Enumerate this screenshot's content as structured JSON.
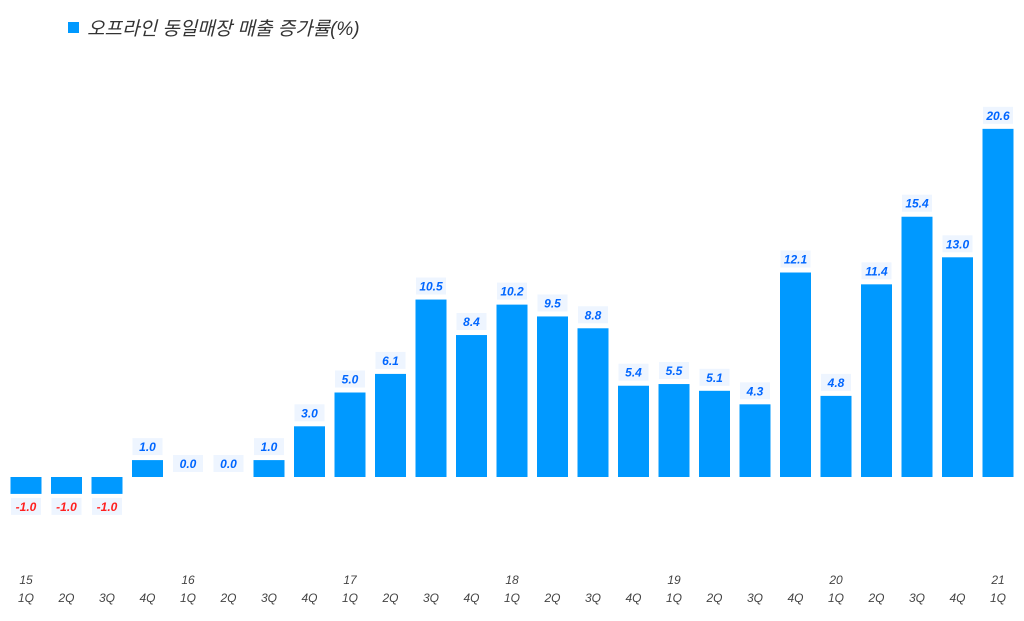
{
  "chart_data": {
    "type": "bar",
    "title": "",
    "legend": {
      "position": "top-left",
      "entries": [
        "오프라인 동일매장 매출 증가률(%)"
      ]
    },
    "series": [
      {
        "name": "오프라인 동일매장 매출 증가률(%)",
        "color": "#0099ff",
        "values": [
          -1.0,
          -1.0,
          -1.0,
          1.0,
          0.0,
          0.0,
          1.0,
          3.0,
          5.0,
          6.1,
          10.5,
          8.4,
          10.2,
          9.5,
          8.8,
          5.4,
          5.5,
          5.1,
          4.3,
          12.1,
          4.8,
          11.4,
          15.4,
          13.0,
          20.6
        ]
      }
    ],
    "categories": [
      "1Q",
      "2Q",
      "3Q",
      "4Q",
      "1Q",
      "2Q",
      "3Q",
      "4Q",
      "1Q",
      "2Q",
      "3Q",
      "4Q",
      "1Q",
      "2Q",
      "3Q",
      "4Q",
      "1Q",
      "2Q",
      "3Q",
      "4Q",
      "1Q",
      "2Q",
      "3Q",
      "4Q",
      "1Q"
    ],
    "year_labels": [
      "15",
      "",
      "",
      "",
      "16",
      "",
      "",
      "",
      "17",
      "",
      "",
      "",
      "18",
      "",
      "",
      "",
      "19",
      "",
      "",
      "",
      "20",
      "",
      "",
      "",
      "21"
    ],
    "label_colors": {
      "positive": "#0066ff",
      "negative": "#ff2020"
    },
    "grid": false,
    "xlabel": "",
    "ylabel": ""
  }
}
